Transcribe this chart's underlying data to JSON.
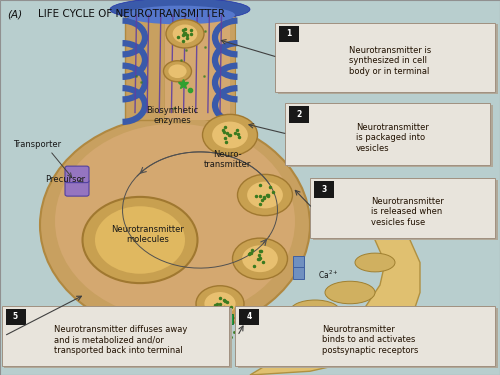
{
  "title_a": "(A)",
  "title_main": "LIFE CYCLE OF NEUROTRANSMITTER",
  "bg_color": "#b8cece",
  "terminal_color": "#d4a870",
  "terminal_edge": "#b08840",
  "axon_color": "#d4a870",
  "myelin_color": "#3a5aaa",
  "purple_line": "#6040a0",
  "dot_color": "#3a7a20",
  "nucleus_color": "#e0b860",
  "vesicle_color": "#e8c070",
  "vesicle_edge": "#c09040",
  "post_color": "#e8c87a",
  "post_edge": "#c0a050",
  "annot_bg": "#e8e4dc",
  "annot_edge": "#a09080",
  "badge_color": "#181818",
  "fig_bg": "#d8d8d8",
  "label_color": "#181818",
  "arrow_color": "#404040",
  "annot1": {
    "num": "1",
    "text": "Neurotransmitter is\nsynthesized in cell\nbody or in terminal",
    "bx": 0.555,
    "by": 0.76,
    "bw": 0.42,
    "bh": 0.17
  },
  "annot2": {
    "num": "2",
    "text": "Neurotransmitter\nis packaged into\nvesicles",
    "bx": 0.58,
    "by": 0.565,
    "bw": 0.39,
    "bh": 0.15
  },
  "annot3": {
    "num": "3",
    "text": "Neurotransmitter\nis released when\nvesicles fuse",
    "bx": 0.62,
    "by": 0.37,
    "bw": 0.36,
    "bh": 0.145
  },
  "annot4": {
    "num": "4",
    "text": "Neurotransmitter\nbinds to and activates\npostsynaptic receptors",
    "bx": 0.48,
    "by": 0.03,
    "bw": 0.5,
    "bh": 0.145
  },
  "annot5": {
    "num": "5",
    "text": "Neurotransmitter diffuses away\nand is metabolized and/or\ntransported back into terminal",
    "bx": 0.01,
    "by": 0.03,
    "bw": 0.43,
    "bh": 0.145
  }
}
